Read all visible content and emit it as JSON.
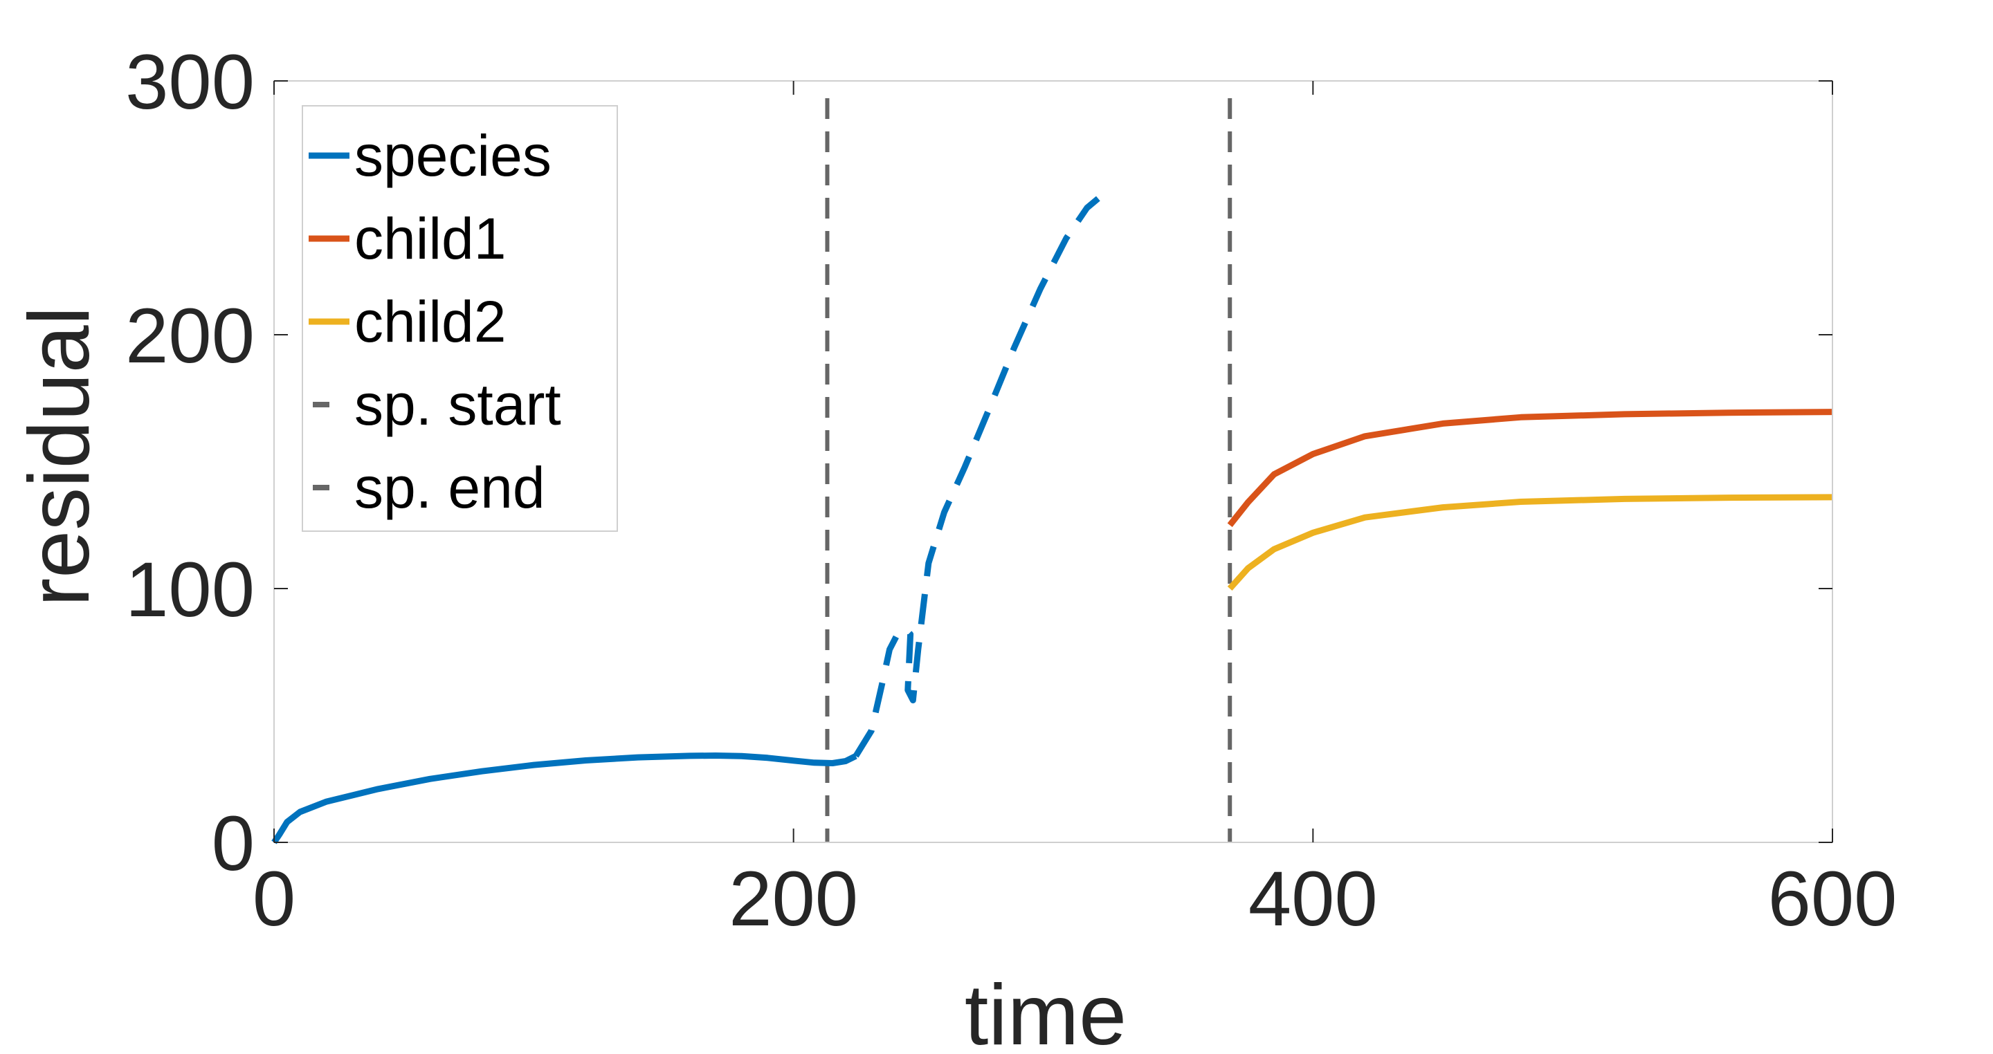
{
  "chart_data": {
    "type": "line",
    "xlabel": "time",
    "ylabel": "residual",
    "xlim": [
      0,
      600
    ],
    "ylim": [
      0,
      300
    ],
    "xticks": [
      "0",
      "200",
      "400",
      "600"
    ],
    "yticks": [
      "0",
      "100",
      "200",
      "300"
    ],
    "grid": false,
    "legend_position": "top-left",
    "series": [
      {
        "name": "species",
        "color": "#0072BD",
        "segments": [
          {
            "style": "solid",
            "points": [
              [
                0,
                0
              ],
              [
                2,
                3
              ],
              [
                5,
                8
              ],
              [
                10,
                12
              ],
              [
                20,
                16
              ],
              [
                40,
                21
              ],
              [
                60,
                25
              ],
              [
                80,
                28
              ],
              [
                100,
                30.5
              ],
              [
                120,
                32.3
              ],
              [
                140,
                33.5
              ],
              [
                160,
                34.1
              ],
              [
                170,
                34.2
              ],
              [
                180,
                34
              ],
              [
                190,
                33.3
              ],
              [
                200,
                32.2
              ],
              [
                208,
                31.4
              ],
              [
                215,
                31.2
              ],
              [
                220,
                32
              ],
              [
                224,
                34
              ]
            ]
          },
          {
            "style": "dashed",
            "points": [
              [
                224,
                34
              ],
              [
                230,
                44
              ],
              [
                234,
                62
              ],
              [
                237,
                76
              ],
              [
                240,
                82
              ],
              [
                243,
                84
              ],
              [
                245,
                82
              ],
              [
                244,
                60
              ],
              [
                246,
                56
              ],
              [
                248,
                76
              ],
              [
                252,
                110
              ],
              [
                258,
                130
              ],
              [
                266,
                148
              ],
              [
                275,
                170
              ],
              [
                285,
                195
              ],
              [
                295,
                218
              ],
              [
                305,
                238
              ],
              [
                313,
                250
              ],
              [
                320,
                256
              ]
            ]
          }
        ]
      },
      {
        "name": "child1",
        "color": "#D95319",
        "segments": [
          {
            "style": "solid",
            "points": [
              [
                368,
                125
              ],
              [
                375,
                134
              ],
              [
                385,
                145
              ],
              [
                400,
                153
              ],
              [
                420,
                160
              ],
              [
                450,
                165
              ],
              [
                480,
                167.5
              ],
              [
                520,
                168.7
              ],
              [
                560,
                169.3
              ],
              [
                600,
                169.6
              ]
            ]
          }
        ]
      },
      {
        "name": "child2",
        "color": "#EDB120",
        "segments": [
          {
            "style": "solid",
            "points": [
              [
                368,
                100
              ],
              [
                375,
                108
              ],
              [
                385,
                115.5
              ],
              [
                400,
                122
              ],
              [
                420,
                128
              ],
              [
                450,
                132
              ],
              [
                480,
                134.2
              ],
              [
                520,
                135.3
              ],
              [
                560,
                135.8
              ],
              [
                600,
                136
              ]
            ]
          }
        ]
      }
    ],
    "vlines": [
      {
        "name": "sp. start",
        "x": 213,
        "style": "dashed",
        "color": "#666666"
      },
      {
        "name": "sp. end",
        "x": 368,
        "style": "dashed",
        "color": "#666666"
      }
    ]
  }
}
